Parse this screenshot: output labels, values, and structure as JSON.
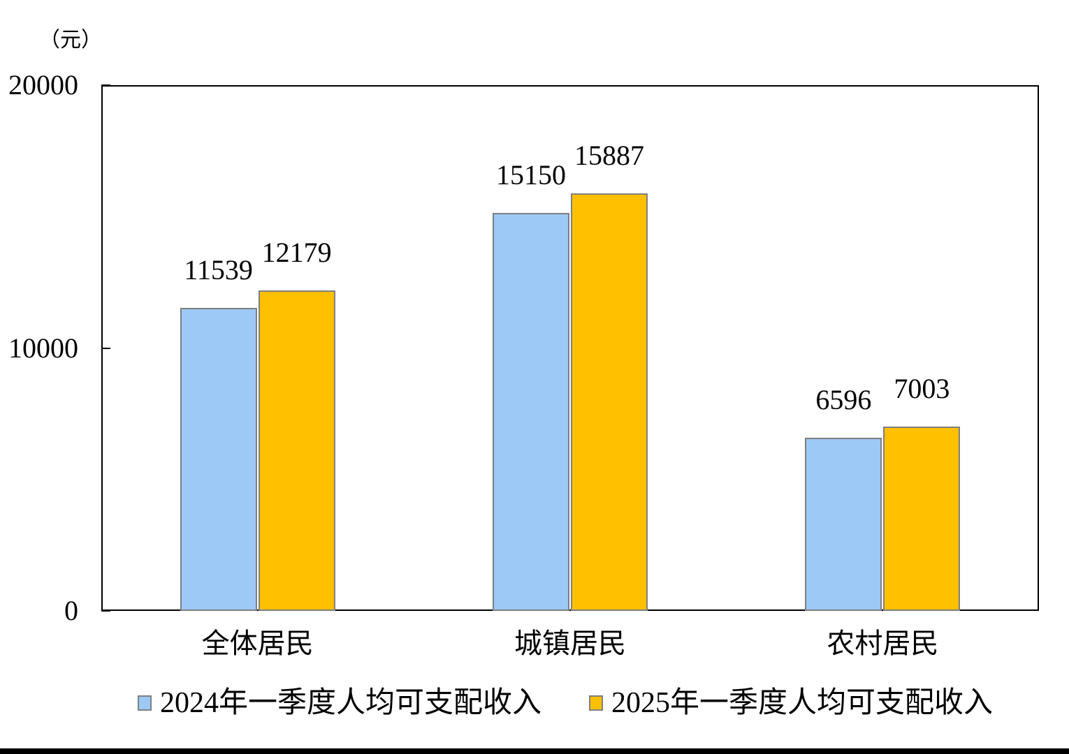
{
  "colors": {
    "series_2024": "#9DC9F7",
    "series_2025": "#FFC000",
    "bar_border": "#7F7F7F",
    "axis": "#000000"
  },
  "chart_data": {
    "type": "bar",
    "title": "",
    "ylabel": "（元）",
    "xlabel": "",
    "categories": [
      "全体居民",
      "城镇居民",
      "农村居民"
    ],
    "series": [
      {
        "name": "2024年一季度人均可支配收入",
        "values": [
          11539,
          15150,
          6596
        ],
        "color": "#9DC9F7"
      },
      {
        "name": "2025年一季度人均可支配收入",
        "values": [
          12179,
          15887,
          7003
        ],
        "color": "#FFC000"
      }
    ],
    "ylim": [
      0,
      20000
    ],
    "yticks": [
      0,
      10000,
      20000
    ],
    "grid": false,
    "value_labels": true,
    "legend_position": "bottom"
  }
}
